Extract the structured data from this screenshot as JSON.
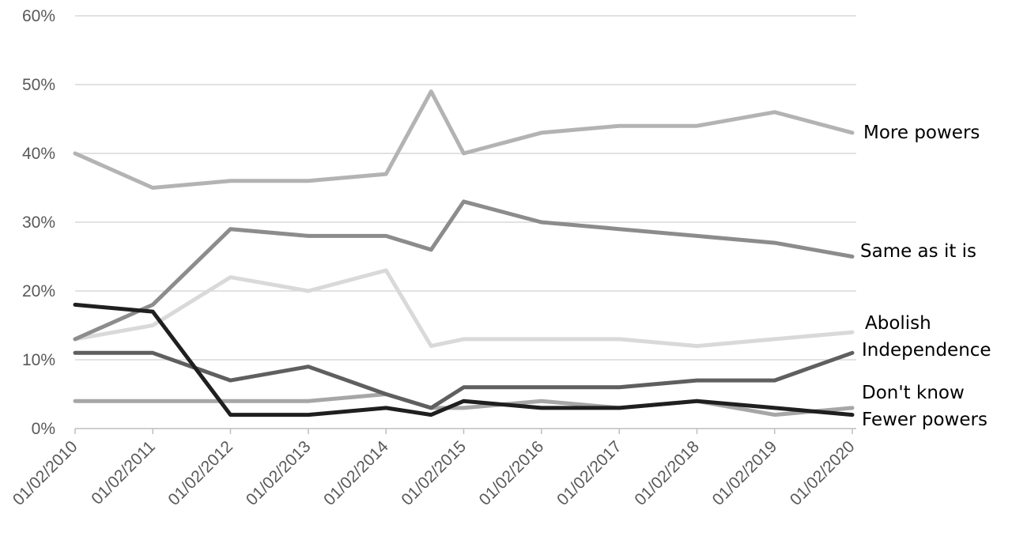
{
  "chart_data": {
    "type": "line",
    "x": [
      "01/02/2010",
      "01/02/2011",
      "01/02/2012",
      "01/02/2013",
      "01/02/2014",
      "01/09/2014",
      "01/02/2015",
      "01/02/2016",
      "01/02/2017",
      "01/02/2018",
      "01/02/2019",
      "01/02/2020"
    ],
    "x_tick_labels": [
      "01/02/2010",
      "01/02/2011",
      "01/02/2012",
      "01/02/2013",
      "01/02/2014",
      "01/02/2015",
      "01/02/2016",
      "01/02/2017",
      "01/02/2018",
      "01/02/2019",
      "01/02/2020"
    ],
    "y_tick_labels": [
      "0%",
      "10%",
      "20%",
      "30%",
      "40%",
      "50%",
      "60%"
    ],
    "ylim": [
      0,
      60
    ],
    "grid": true,
    "legend": "direct labels at line ends",
    "series": [
      {
        "name": "More powers",
        "color": "#b3b3b3",
        "values": [
          40,
          35,
          36,
          36,
          37,
          49,
          40,
          43,
          44,
          44,
          46,
          43
        ]
      },
      {
        "name": "Same as it is",
        "color": "#8c8c8c",
        "values": [
          13,
          18,
          29,
          28,
          28,
          26,
          33,
          30,
          29,
          28,
          27,
          25
        ]
      },
      {
        "name": "Abolish",
        "color": "#d9d9d9",
        "values": [
          13,
          15,
          22,
          20,
          23,
          12,
          13,
          13,
          13,
          12,
          13,
          14
        ]
      },
      {
        "name": "Independence",
        "color": "#5f5f5f",
        "values": [
          11,
          11,
          7,
          9,
          5,
          3,
          6,
          6,
          6,
          7,
          7,
          11
        ]
      },
      {
        "name": "Don't know",
        "color": "#a6a6a6",
        "values": [
          4,
          4,
          4,
          4,
          5,
          3,
          3,
          4,
          3,
          4,
          2,
          3
        ]
      },
      {
        "name": "Fewer powers",
        "color": "#1f1f1f",
        "values": [
          18,
          17,
          2,
          2,
          3,
          2,
          4,
          3,
          3,
          4,
          3,
          2
        ]
      }
    ]
  }
}
